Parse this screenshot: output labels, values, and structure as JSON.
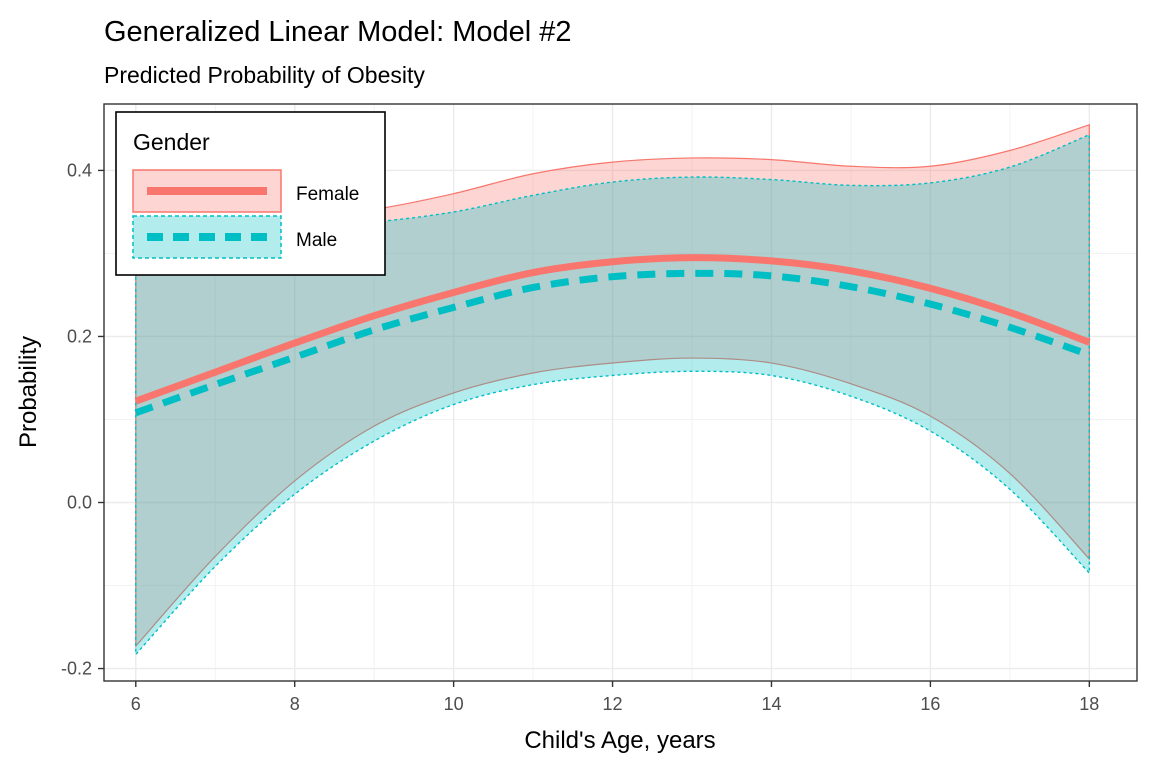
{
  "chart_data": {
    "type": "line",
    "title": "Generalized Linear Model: Model #2",
    "subtitle": "Predicted Probability of Obesity",
    "xlabel": "Child's Age, years",
    "ylabel": "Probability",
    "xlim": [
      5.6,
      18.6
    ],
    "ylim": [
      -0.215,
      0.48
    ],
    "xticks": [
      6,
      8,
      10,
      12,
      14,
      16,
      18
    ],
    "xtick_labels": [
      "6",
      "8",
      "10",
      "12",
      "14",
      "16",
      "18"
    ],
    "yticks": [
      -0.2,
      0.0,
      0.2,
      0.4
    ],
    "ytick_labels": [
      "-0.2",
      "0.0",
      "0.2",
      "0.4"
    ],
    "grid": true,
    "legend": {
      "title": "Gender",
      "position": "top-left"
    },
    "x": [
      6,
      7,
      8,
      9,
      10,
      11,
      12,
      13,
      14,
      15,
      16,
      17,
      18
    ],
    "series": [
      {
        "name": "Female",
        "color": "#F8766D",
        "line_style": "solid",
        "fit": [
          0.122,
          0.157,
          0.192,
          0.225,
          0.253,
          0.277,
          0.29,
          0.295,
          0.291,
          0.279,
          0.258,
          0.229,
          0.193
        ],
        "lower": [
          -0.173,
          -0.065,
          0.026,
          0.092,
          0.132,
          0.156,
          0.168,
          0.174,
          0.168,
          0.143,
          0.104,
          0.035,
          -0.068
        ],
        "upper": [
          0.287,
          0.322,
          0.342,
          0.353,
          0.372,
          0.396,
          0.41,
          0.415,
          0.413,
          0.405,
          0.405,
          0.424,
          0.455
        ]
      },
      {
        "name": "Male",
        "color": "#00BFC4",
        "line_style": "dashed",
        "fit": [
          0.108,
          0.142,
          0.175,
          0.208,
          0.235,
          0.259,
          0.272,
          0.276,
          0.273,
          0.26,
          0.239,
          0.211,
          0.178
        ],
        "lower": [
          -0.183,
          -0.077,
          0.01,
          0.074,
          0.118,
          0.142,
          0.153,
          0.158,
          0.153,
          0.128,
          0.086,
          0.016,
          -0.085
        ],
        "upper": [
          0.285,
          0.316,
          0.333,
          0.338,
          0.35,
          0.37,
          0.386,
          0.392,
          0.389,
          0.382,
          0.385,
          0.404,
          0.443
        ]
      }
    ]
  }
}
